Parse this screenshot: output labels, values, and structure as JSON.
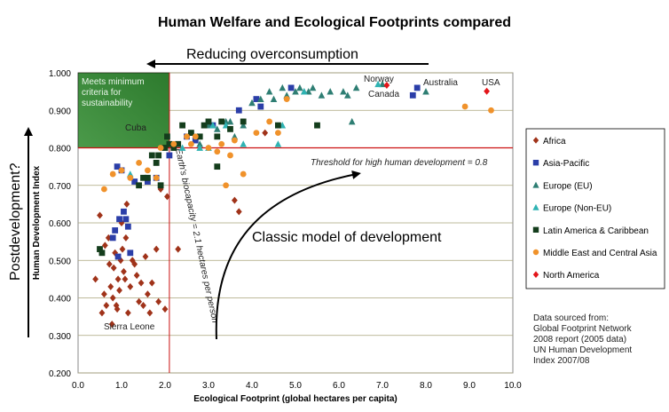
{
  "chart_data": {
    "type": "scatter",
    "title": "Human Welfare and Ecological Footprints compared",
    "xlabel": "Ecological Footprint (global hectares per capita)",
    "ylabel": "Human Development Index",
    "xlim": [
      0,
      10
    ],
    "ylim": [
      0.2,
      1.0
    ],
    "x_ticks": [
      "0.0",
      "1.0",
      "2.0",
      "3.0",
      "4.0",
      "5.0",
      "6.0",
      "7.0",
      "8.0",
      "9.0",
      "10.0"
    ],
    "y_ticks": [
      "0.200",
      "0.300",
      "0.400",
      "0.500",
      "0.600",
      "0.700",
      "0.800",
      "0.900",
      "1.000"
    ],
    "grid": true,
    "legend_position": "right",
    "reference_lines": {
      "hdi_threshold": 0.8,
      "hdi_threshold_label": "Threshold for high human development = 0.8",
      "biocapacity": 2.1,
      "biocapacity_label": "Earth's biocapacity = 2.1 hectares per person"
    },
    "sustainability_box_label": [
      "Meets minimum",
      "criteria for",
      "sustainability"
    ],
    "arrow_top_label": "Reducing overconsumption",
    "arrow_left_label": "Postdevelopment?",
    "curve_label": "Classic model of development",
    "point_labels": [
      "Norway",
      "Canada",
      "Australia",
      "USA",
      "Cuba",
      "Sierra Leone"
    ],
    "source_note": [
      "Data sourced from:",
      "Global Footprint Network",
      "2008 report (2005 data)",
      "UN Human Development",
      "Index 2007/08"
    ],
    "series": [
      {
        "name": "Africa",
        "color": "#a0331a",
        "marker": "diamond",
        "points": [
          [
            0.4,
            0.45
          ],
          [
            0.5,
            0.62
          ],
          [
            0.55,
            0.36
          ],
          [
            0.6,
            0.41
          ],
          [
            0.62,
            0.54
          ],
          [
            0.65,
            0.38
          ],
          [
            0.7,
            0.56
          ],
          [
            0.72,
            0.49
          ],
          [
            0.75,
            0.43
          ],
          [
            0.78,
            0.33
          ],
          [
            0.8,
            0.4
          ],
          [
            0.82,
            0.48
          ],
          [
            0.85,
            0.52
          ],
          [
            0.88,
            0.38
          ],
          [
            0.9,
            0.37
          ],
          [
            0.92,
            0.45
          ],
          [
            0.95,
            0.42
          ],
          [
            0.98,
            0.5
          ],
          [
            1.0,
            0.6
          ],
          [
            1.02,
            0.53
          ],
          [
            1.05,
            0.47
          ],
          [
            1.08,
            0.45
          ],
          [
            1.1,
            0.56
          ],
          [
            1.12,
            0.65
          ],
          [
            1.15,
            0.36
          ],
          [
            1.2,
            0.43
          ],
          [
            1.25,
            0.5
          ],
          [
            1.3,
            0.49
          ],
          [
            1.35,
            0.46
          ],
          [
            1.4,
            0.39
          ],
          [
            1.45,
            0.44
          ],
          [
            1.5,
            0.38
          ],
          [
            1.55,
            0.51
          ],
          [
            1.6,
            0.41
          ],
          [
            1.65,
            0.36
          ],
          [
            1.7,
            0.44
          ],
          [
            1.8,
            0.53
          ],
          [
            1.85,
            0.39
          ],
          [
            1.9,
            0.69
          ],
          [
            2.0,
            0.37
          ],
          [
            2.05,
            0.67
          ],
          [
            2.3,
            0.53
          ],
          [
            3.6,
            0.66
          ],
          [
            3.7,
            0.63
          ],
          [
            4.3,
            0.84
          ]
        ]
      },
      {
        "name": "Asia-Pacific",
        "color": "#2b3ea8",
        "marker": "square",
        "points": [
          [
            0.8,
            0.56
          ],
          [
            0.85,
            0.58
          ],
          [
            0.9,
            0.75
          ],
          [
            0.92,
            0.51
          ],
          [
            0.95,
            0.61
          ],
          [
            1.0,
            0.74
          ],
          [
            1.05,
            0.63
          ],
          [
            1.1,
            0.61
          ],
          [
            1.15,
            0.59
          ],
          [
            1.2,
            0.52
          ],
          [
            1.3,
            0.71
          ],
          [
            1.6,
            0.71
          ],
          [
            1.8,
            0.72
          ],
          [
            2.1,
            0.78
          ],
          [
            2.5,
            0.83
          ],
          [
            2.7,
            0.82
          ],
          [
            3.1,
            0.86
          ],
          [
            3.7,
            0.9
          ],
          [
            4.1,
            0.93
          ],
          [
            4.2,
            0.91
          ],
          [
            4.9,
            0.96
          ],
          [
            7.7,
            0.94
          ],
          [
            7.8,
            0.96
          ]
        ]
      },
      {
        "name": "Europe (EU)",
        "color": "#2e7e73",
        "marker": "triangle",
        "points": [
          [
            2.8,
            0.81
          ],
          [
            3.0,
            0.86
          ],
          [
            3.2,
            0.85
          ],
          [
            3.4,
            0.87
          ],
          [
            3.5,
            0.87
          ],
          [
            3.6,
            0.83
          ],
          [
            3.8,
            0.86
          ],
          [
            4.0,
            0.92
          ],
          [
            4.2,
            0.93
          ],
          [
            4.4,
            0.95
          ],
          [
            4.5,
            0.93
          ],
          [
            4.7,
            0.96
          ],
          [
            4.8,
            0.94
          ],
          [
            5.0,
            0.95
          ],
          [
            5.1,
            0.96
          ],
          [
            5.2,
            0.95
          ],
          [
            5.3,
            0.95
          ],
          [
            5.4,
            0.96
          ],
          [
            5.6,
            0.94
          ],
          [
            5.8,
            0.95
          ],
          [
            6.1,
            0.95
          ],
          [
            6.2,
            0.94
          ],
          [
            6.3,
            0.87
          ],
          [
            6.4,
            0.96
          ],
          [
            7.0,
            0.97
          ],
          [
            8.0,
            0.95
          ]
        ]
      },
      {
        "name": "Europe (Non-EU)",
        "color": "#2fb3b3",
        "marker": "triangle",
        "points": [
          [
            1.2,
            0.73
          ],
          [
            2.4,
            0.8
          ],
          [
            2.8,
            0.8
          ],
          [
            3.0,
            0.8
          ],
          [
            3.1,
            0.86
          ],
          [
            3.4,
            0.86
          ],
          [
            3.8,
            0.81
          ],
          [
            4.6,
            0.81
          ],
          [
            4.7,
            0.86
          ],
          [
            5.2,
            0.95
          ],
          [
            6.9,
            0.97
          ]
        ]
      },
      {
        "name": "Latin America & Caribbean",
        "color": "#143d1c",
        "marker": "square",
        "points": [
          [
            0.5,
            0.53
          ],
          [
            0.55,
            0.52
          ],
          [
            1.4,
            0.7
          ],
          [
            1.5,
            0.72
          ],
          [
            1.6,
            0.72
          ],
          [
            1.7,
            0.78
          ],
          [
            1.8,
            0.76
          ],
          [
            1.85,
            0.78
          ],
          [
            1.9,
            0.7
          ],
          [
            2.0,
            0.8
          ],
          [
            2.05,
            0.83
          ],
          [
            2.1,
            0.81
          ],
          [
            2.2,
            0.8
          ],
          [
            2.3,
            0.81
          ],
          [
            2.4,
            0.86
          ],
          [
            2.6,
            0.84
          ],
          [
            2.8,
            0.83
          ],
          [
            2.9,
            0.86
          ],
          [
            3.0,
            0.87
          ],
          [
            3.2,
            0.75
          ],
          [
            3.2,
            0.83
          ],
          [
            3.3,
            0.87
          ],
          [
            3.5,
            0.85
          ],
          [
            3.8,
            0.87
          ],
          [
            4.6,
            0.86
          ],
          [
            5.5,
            0.86
          ]
        ]
      },
      {
        "name": "Middle East and Central Asia",
        "color": "#f0922b",
        "marker": "circle",
        "points": [
          [
            0.6,
            0.69
          ],
          [
            0.8,
            0.73
          ],
          [
            1.0,
            0.74
          ],
          [
            1.2,
            0.72
          ],
          [
            1.4,
            0.76
          ],
          [
            1.6,
            0.74
          ],
          [
            1.8,
            0.72
          ],
          [
            1.9,
            0.8
          ],
          [
            2.2,
            0.81
          ],
          [
            2.5,
            0.83
          ],
          [
            2.6,
            0.81
          ],
          [
            2.7,
            0.83
          ],
          [
            3.0,
            0.8
          ],
          [
            3.2,
            0.79
          ],
          [
            3.3,
            0.81
          ],
          [
            3.4,
            0.7
          ],
          [
            3.5,
            0.78
          ],
          [
            3.6,
            0.82
          ],
          [
            3.8,
            0.73
          ],
          [
            4.1,
            0.84
          ],
          [
            4.4,
            0.87
          ],
          [
            4.6,
            0.84
          ],
          [
            4.8,
            0.93
          ],
          [
            8.9,
            0.91
          ],
          [
            9.5,
            0.9
          ]
        ]
      },
      {
        "name": "North America",
        "color": "#e3151a",
        "marker": "diamond",
        "points": [
          [
            7.1,
            0.967
          ],
          [
            9.4,
            0.951
          ]
        ]
      }
    ]
  }
}
